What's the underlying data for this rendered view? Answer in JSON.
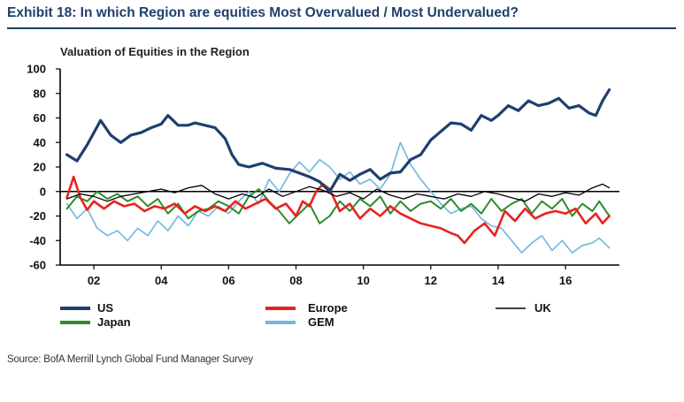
{
  "exhibit_title": "Exhibit 18: In which Region are equities Most Overvalued / Most Undervalued?",
  "source": "Source: BofA Merrill Lynch Global Fund Manager Survey",
  "chart_data": {
    "type": "line",
    "title": "Valuation of Equities in the Region",
    "xlabel": "",
    "ylabel": "",
    "xlim": [
      2001.0,
      2017.6
    ],
    "ylim": [
      -60,
      100
    ],
    "yticks": [
      100,
      80,
      60,
      40,
      20,
      0,
      -20,
      -40,
      -60
    ],
    "xticks": [
      {
        "x": 2002,
        "label": "02"
      },
      {
        "x": 2004,
        "label": "04"
      },
      {
        "x": 2006,
        "label": "06"
      },
      {
        "x": 2008,
        "label": "08"
      },
      {
        "x": 2010,
        "label": "10"
      },
      {
        "x": 2012,
        "label": "12"
      },
      {
        "x": 2014,
        "label": "14"
      },
      {
        "x": 2016,
        "label": "16"
      }
    ],
    "grid": false,
    "legend_placement": "bottom",
    "series": [
      {
        "name": "US",
        "color": "#1f3f6e",
        "x": [
          2001.2,
          2001.5,
          2001.8,
          2002.0,
          2002.2,
          2002.5,
          2002.8,
          2003.1,
          2003.4,
          2003.7,
          2004.0,
          2004.2,
          2004.5,
          2004.8,
          2005.0,
          2005.3,
          2005.6,
          2005.9,
          2006.1,
          2006.3,
          2006.6,
          2007.0,
          2007.4,
          2007.8,
          2008.1,
          2008.4,
          2008.7,
          2009.0,
          2009.3,
          2009.6,
          2009.9,
          2010.2,
          2010.5,
          2010.8,
          2011.1,
          2011.4,
          2011.7,
          2012.0,
          2012.3,
          2012.6,
          2012.9,
          2013.2,
          2013.5,
          2013.8,
          2014.0,
          2014.3,
          2014.6,
          2014.9,
          2015.2,
          2015.5,
          2015.8,
          2016.1,
          2016.4,
          2016.7,
          2016.9,
          2017.1,
          2017.3
        ],
        "y": [
          30,
          25,
          38,
          48,
          58,
          46,
          40,
          46,
          48,
          52,
          55,
          62,
          54,
          54,
          56,
          54,
          52,
          43,
          30,
          22,
          20,
          23,
          19,
          18,
          15,
          12,
          8,
          0,
          14,
          9,
          14,
          18,
          10,
          15,
          16,
          26,
          30,
          42,
          49,
          56,
          55,
          50,
          62,
          58,
          62,
          70,
          66,
          74,
          70,
          72,
          76,
          68,
          70,
          64,
          62,
          74,
          83
        ]
      },
      {
        "name": "Europe",
        "color": "#e8231e",
        "x": [
          2001.2,
          2001.4,
          2001.6,
          2001.8,
          2002.0,
          2002.3,
          2002.6,
          2002.9,
          2003.2,
          2003.5,
          2003.8,
          2004.1,
          2004.4,
          2004.7,
          2005.0,
          2005.3,
          2005.6,
          2005.9,
          2006.2,
          2006.5,
          2006.8,
          2007.1,
          2007.4,
          2007.7,
          2008.0,
          2008.2,
          2008.4,
          2008.6,
          2008.8,
          2009.0,
          2009.3,
          2009.6,
          2009.9,
          2010.2,
          2010.5,
          2010.8,
          2011.1,
          2011.4,
          2011.7,
          2012.0,
          2012.3,
          2012.6,
          2012.8,
          2013.0,
          2013.3,
          2013.6,
          2013.9,
          2014.2,
          2014.5,
          2014.8,
          2015.1,
          2015.4,
          2015.7,
          2016.0,
          2016.3,
          2016.6,
          2016.9,
          2017.1,
          2017.3
        ],
        "y": [
          -5,
          12,
          -5,
          -15,
          -8,
          -14,
          -8,
          -12,
          -10,
          -16,
          -12,
          -14,
          -10,
          -18,
          -12,
          -16,
          -12,
          -16,
          -8,
          -14,
          -10,
          -6,
          -14,
          -10,
          -20,
          -8,
          -12,
          0,
          6,
          2,
          -16,
          -10,
          -22,
          -14,
          -20,
          -12,
          -18,
          -22,
          -26,
          -28,
          -30,
          -34,
          -36,
          -42,
          -32,
          -26,
          -36,
          -16,
          -24,
          -14,
          -22,
          -18,
          -16,
          -18,
          -14,
          -26,
          -18,
          -26,
          -20
        ]
      },
      {
        "name": "UK",
        "color": "#000000",
        "x": [
          2001.2,
          2001.6,
          2002.0,
          2002.4,
          2002.8,
          2003.2,
          2003.6,
          2004.0,
          2004.4,
          2004.8,
          2005.2,
          2005.6,
          2006.0,
          2006.4,
          2006.8,
          2007.2,
          2007.6,
          2008.0,
          2008.4,
          2008.8,
          2009.2,
          2009.6,
          2010.0,
          2010.4,
          2010.8,
          2011.2,
          2011.6,
          2012.0,
          2012.4,
          2012.8,
          2013.2,
          2013.6,
          2014.0,
          2014.4,
          2014.8,
          2015.2,
          2015.6,
          2016.0,
          2016.4,
          2016.8,
          2017.1,
          2017.3
        ],
        "y": [
          -6,
          -2,
          -4,
          -8,
          -4,
          -2,
          0,
          2,
          -1,
          3,
          5,
          -2,
          -6,
          -2,
          -5,
          2,
          -4,
          0,
          4,
          1,
          -4,
          -1,
          -6,
          2,
          -3,
          -6,
          -2,
          -4,
          -6,
          -2,
          -4,
          0,
          -2,
          -5,
          -8,
          -2,
          -4,
          -1,
          -3,
          3,
          6,
          3
        ]
      },
      {
        "name": "Japan",
        "color": "#2e8b2e",
        "x": [
          2001.2,
          2001.5,
          2001.8,
          2002.1,
          2002.4,
          2002.7,
          2003.0,
          2003.3,
          2003.6,
          2003.9,
          2004.2,
          2004.5,
          2004.8,
          2005.1,
          2005.4,
          2005.7,
          2006.0,
          2006.3,
          2006.6,
          2006.9,
          2007.2,
          2007.5,
          2007.8,
          2008.1,
          2008.4,
          2008.7,
          2009.0,
          2009.3,
          2009.6,
          2009.9,
          2010.2,
          2010.5,
          2010.8,
          2011.1,
          2011.4,
          2011.7,
          2012.0,
          2012.3,
          2012.6,
          2012.9,
          2013.2,
          2013.5,
          2013.8,
          2014.1,
          2014.4,
          2014.7,
          2015.0,
          2015.3,
          2015.6,
          2015.9,
          2016.2,
          2016.5,
          2016.8,
          2017.0,
          2017.3
        ],
        "y": [
          -14,
          -4,
          -8,
          0,
          -6,
          -2,
          -8,
          -4,
          -12,
          -6,
          -18,
          -10,
          -22,
          -16,
          -14,
          -8,
          -12,
          -18,
          -4,
          2,
          -8,
          -16,
          -26,
          -18,
          -10,
          -26,
          -20,
          -8,
          -16,
          -6,
          -12,
          -4,
          -18,
          -8,
          -16,
          -10,
          -8,
          -14,
          -6,
          -16,
          -10,
          -18,
          -6,
          -16,
          -10,
          -6,
          -18,
          -8,
          -14,
          -6,
          -20,
          -10,
          -16,
          -8,
          -20
        ]
      },
      {
        "name": "GEM",
        "color": "#6db8e0",
        "x": [
          2001.2,
          2001.5,
          2001.8,
          2002.1,
          2002.4,
          2002.7,
          2003.0,
          2003.3,
          2003.6,
          2003.9,
          2004.2,
          2004.5,
          2004.8,
          2005.1,
          2005.4,
          2005.7,
          2006.0,
          2006.3,
          2006.6,
          2006.9,
          2007.2,
          2007.5,
          2007.8,
          2008.1,
          2008.4,
          2008.7,
          2009.0,
          2009.3,
          2009.6,
          2009.9,
          2010.2,
          2010.5,
          2010.8,
          2011.1,
          2011.4,
          2011.7,
          2012.0,
          2012.3,
          2012.6,
          2012.9,
          2013.2,
          2013.5,
          2013.8,
          2014.1,
          2014.4,
          2014.7,
          2015.0,
          2015.3,
          2015.6,
          2015.9,
          2016.2,
          2016.5,
          2016.8,
          2017.0,
          2017.3
        ],
        "y": [
          -10,
          -22,
          -14,
          -30,
          -36,
          -32,
          -40,
          -30,
          -36,
          -24,
          -32,
          -20,
          -28,
          -16,
          -20,
          -12,
          -18,
          -8,
          0,
          -10,
          10,
          0,
          14,
          24,
          16,
          26,
          20,
          10,
          16,
          6,
          10,
          2,
          14,
          40,
          22,
          10,
          0,
          -10,
          -18,
          -14,
          -12,
          -22,
          -28,
          -30,
          -40,
          -50,
          -42,
          -36,
          -48,
          -40,
          -50,
          -44,
          -42,
          -38,
          -46
        ]
      }
    ]
  }
}
